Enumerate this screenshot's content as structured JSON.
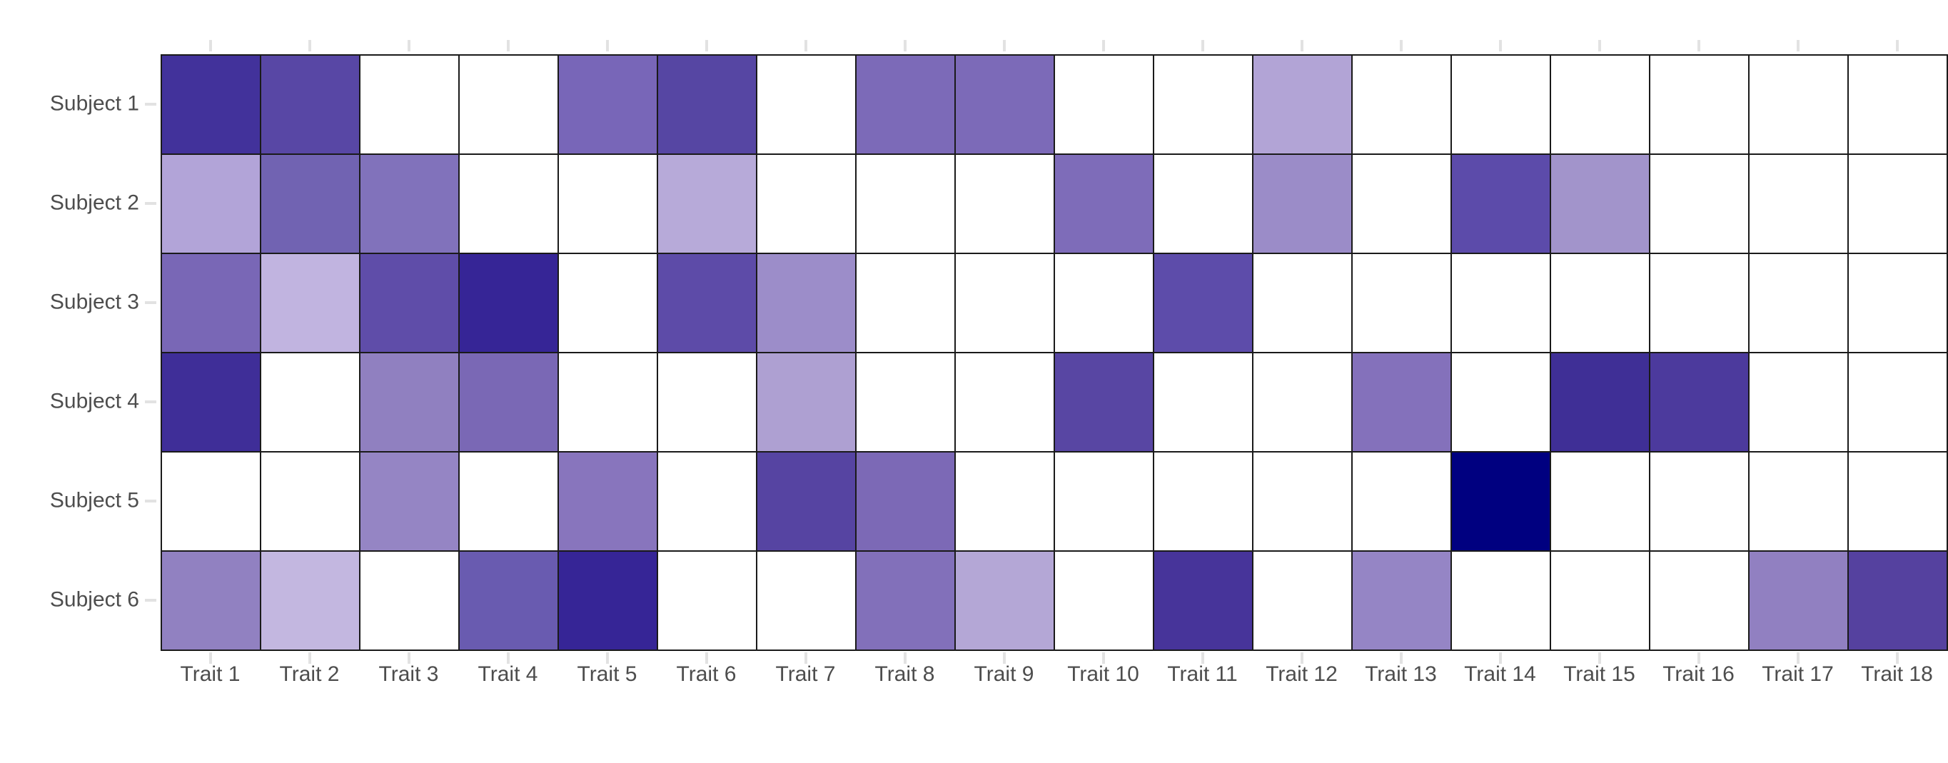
{
  "chart_data": {
    "type": "heatmap",
    "title": "",
    "x_labels": [
      "Trait 1",
      "Trait 2",
      "Trait 3",
      "Trait 4",
      "Trait 5",
      "Trait 6",
      "Trait 7",
      "Trait 8",
      "Trait 9",
      "Trait 10",
      "Trait 11",
      "Trait 12",
      "Trait 13",
      "Trait 14",
      "Trait 15",
      "Trait 16",
      "Trait 17",
      "Trait 18"
    ],
    "y_labels": [
      "Subject 1",
      "Subject 2",
      "Subject 3",
      "Subject 4",
      "Subject 5",
      "Subject 6"
    ],
    "cell_colors": [
      [
        "#42329b",
        "#5847a5",
        "#ffffff",
        "#ffffff",
        "#7866b8",
        "#5646a3",
        "#ffffff",
        "#7c6ab8",
        "#7c6ab8",
        "#ffffff",
        "#ffffff",
        "#b2a4d6",
        "#ffffff",
        "#ffffff",
        "#ffffff",
        "#ffffff",
        "#ffffff",
        "#ffffff"
      ],
      [
        "#b2a4d8",
        "#7163b2",
        "#8172bb",
        "#ffffff",
        "#ffffff",
        "#b7aad9",
        "#ffffff",
        "#ffffff",
        "#ffffff",
        "#7e6cb9",
        "#ffffff",
        "#9b8cc8",
        "#ffffff",
        "#5c4baa",
        "#a294cb",
        "#ffffff",
        "#ffffff",
        "#ffffff"
      ],
      [
        "#7967b6",
        "#c1b4e0",
        "#5f4da9",
        "#362596",
        "#ffffff",
        "#5d4ba8",
        "#9c8dc9",
        "#ffffff",
        "#ffffff",
        "#ffffff",
        "#5d4caa",
        "#ffffff",
        "#ffffff",
        "#ffffff",
        "#ffffff",
        "#ffffff",
        "#ffffff",
        "#ffffff"
      ],
      [
        "#3f2e98",
        "#ffffff",
        "#9080c0",
        "#7a68b5",
        "#ffffff",
        "#ffffff",
        "#aea0d2",
        "#ffffff",
        "#ffffff",
        "#5846a3",
        "#ffffff",
        "#ffffff",
        "#8471bb",
        "#ffffff",
        "#3f2f96",
        "#4c3a9d",
        "#ffffff",
        "#ffffff"
      ],
      [
        "#ffffff",
        "#ffffff",
        "#9585c4",
        "#ffffff",
        "#8875bd",
        "#ffffff",
        "#5644a2",
        "#7c69b6",
        "#ffffff",
        "#ffffff",
        "#ffffff",
        "#ffffff",
        "#ffffff",
        "#000080",
        "#ffffff",
        "#ffffff",
        "#ffffff",
        "#ffffff"
      ],
      [
        "#9181c1",
        "#c3b7e0",
        "#ffffff",
        "#695bb0",
        "#362596",
        "#ffffff",
        "#ffffff",
        "#8270ba",
        "#b4a7d6",
        "#ffffff",
        "#47349a",
        "#ffffff",
        "#9585c5",
        "#ffffff",
        "#ffffff",
        "#ffffff",
        "#9180c1",
        "#55419f"
      ]
    ],
    "values": [
      [
        0.62,
        0.48,
        0,
        0,
        0.35,
        0.5,
        0,
        0.36,
        0.36,
        0,
        0,
        0.2,
        0,
        0,
        0,
        0,
        0,
        0
      ],
      [
        0.2,
        0.4,
        0.32,
        0,
        0,
        0.19,
        0,
        0,
        0,
        0.35,
        0,
        0.26,
        0,
        0.47,
        0.25,
        0,
        0,
        0
      ],
      [
        0.36,
        0.14,
        0.45,
        0.66,
        0,
        0.46,
        0.26,
        0,
        0,
        0,
        0.46,
        0,
        0,
        0,
        0,
        0,
        0,
        0
      ],
      [
        0.63,
        0,
        0.29,
        0.36,
        0,
        0,
        0.22,
        0,
        0,
        0.49,
        0,
        0,
        0.33,
        0,
        0.64,
        0.57,
        0,
        0
      ],
      [
        0,
        0,
        0.28,
        0,
        0.31,
        0,
        0.5,
        0.36,
        0,
        0,
        0,
        0,
        0,
        1.0,
        0,
        0,
        0,
        0
      ],
      [
        0.29,
        0.14,
        0,
        0.42,
        0.66,
        0,
        0,
        0.33,
        0.2,
        0,
        0.58,
        0,
        0.28,
        0,
        0,
        0,
        0.29,
        0.52
      ]
    ],
    "value_scale_note": "values estimated 0-1 from color intensity (white=0, navy=1); no numeric labels shown in chart",
    "colormap": {
      "min_color": "#ffffff",
      "mid_color": "#7b69b7",
      "max_color": "#000080"
    },
    "layout": {
      "legend": "none",
      "grid_line_color": "#1a1a1a",
      "tick_color": "#e2e2e2",
      "axis_label_color": "#4d4d4d",
      "background": "#ffffff",
      "ticks_on_sides": [
        "top",
        "bottom",
        "left",
        "right"
      ]
    }
  }
}
